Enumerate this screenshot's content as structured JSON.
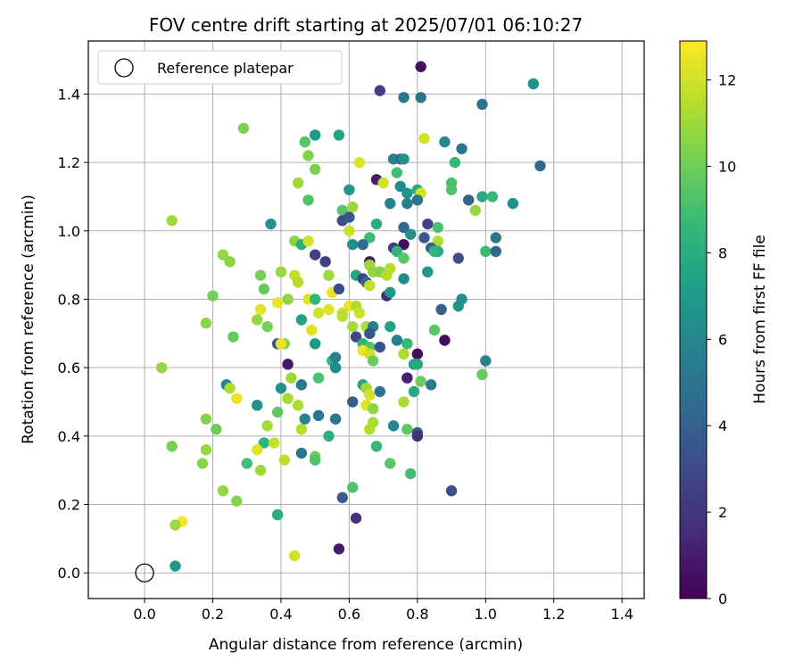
{
  "chart_data": {
    "type": "scatter",
    "title": "FOV centre drift starting at 2025/07/01 06:10:27",
    "xlabel": "Angular distance from reference (arcmin)",
    "ylabel": "Rotation from reference (arcmin)",
    "xlim": [
      -0.165,
      1.465
    ],
    "ylim": [
      -0.075,
      1.555
    ],
    "xticks": [
      0.0,
      0.2,
      0.4,
      0.6,
      0.8,
      1.0,
      1.2,
      1.4
    ],
    "yticks": [
      0.0,
      0.2,
      0.4,
      0.6,
      0.8,
      1.0,
      1.2,
      1.4
    ],
    "grid": true,
    "legend": {
      "placement": "upper-left",
      "entries": [
        "Reference platepar"
      ]
    },
    "reference_point": {
      "x": 0.0,
      "y": 0.0,
      "marker": "open-circle"
    },
    "colorbar": {
      "label": "Hours from first FF file",
      "colormap": "viridis",
      "range": [
        0,
        12.9
      ],
      "ticks": [
        0,
        2,
        4,
        6,
        8,
        10,
        12
      ]
    },
    "points": [
      [
        0.81,
        1.48,
        0.5
      ],
      [
        1.14,
        1.43,
        6.6
      ],
      [
        0.69,
        1.41,
        2.2
      ],
      [
        0.76,
        1.39,
        5.0
      ],
      [
        0.81,
        1.39,
        5.0
      ],
      [
        0.99,
        1.37,
        4.8
      ],
      [
        0.5,
        1.28,
        6.8
      ],
      [
        0.57,
        1.28,
        7.5
      ],
      [
        0.29,
        1.3,
        10.3
      ],
      [
        0.47,
        1.26,
        9.4
      ],
      [
        0.48,
        1.22,
        10.4
      ],
      [
        0.82,
        1.27,
        12.0
      ],
      [
        0.88,
        1.26,
        6.0
      ],
      [
        0.93,
        1.24,
        4.9
      ],
      [
        0.91,
        1.2,
        8.6
      ],
      [
        0.73,
        1.21,
        5.8
      ],
      [
        0.75,
        1.21,
        4.5
      ],
      [
        0.76,
        1.21,
        6.5
      ],
      [
        0.74,
        1.17,
        8.9
      ],
      [
        0.5,
        1.18,
        10.3
      ],
      [
        0.63,
        1.2,
        12.3
      ],
      [
        1.16,
        1.19,
        4.3
      ],
      [
        0.68,
        1.15,
        1.0
      ],
      [
        0.7,
        1.14,
        12.0
      ],
      [
        0.75,
        1.13,
        6.3
      ],
      [
        0.45,
        1.14,
        11.0
      ],
      [
        0.9,
        1.14,
        9.1
      ],
      [
        0.9,
        1.12,
        9.2
      ],
      [
        0.6,
        1.12,
        6.8
      ],
      [
        0.8,
        1.12,
        7.9
      ],
      [
        0.81,
        1.11,
        12.0
      ],
      [
        0.77,
        1.11,
        6.8
      ],
      [
        0.99,
        1.1,
        7.8
      ],
      [
        1.02,
        1.1,
        8.7
      ],
      [
        1.08,
        1.08,
        6.5
      ],
      [
        0.95,
        1.09,
        4.0
      ],
      [
        0.72,
        1.08,
        5.8
      ],
      [
        0.8,
        1.09,
        5.0
      ],
      [
        0.77,
        1.08,
        5.5
      ],
      [
        0.48,
        1.09,
        9.3
      ],
      [
        0.58,
        1.06,
        9.5
      ],
      [
        0.61,
        1.07,
        11.0
      ],
      [
        0.97,
        1.06,
        10.8
      ],
      [
        0.08,
        1.03,
        11.0
      ],
      [
        0.58,
        1.03,
        3.2
      ],
      [
        0.6,
        1.04,
        3.5
      ],
      [
        0.37,
        1.02,
        6.6
      ],
      [
        0.68,
        1.02,
        7.9
      ],
      [
        0.76,
        1.01,
        4.2
      ],
      [
        0.86,
        1.01,
        9.2
      ],
      [
        0.83,
        1.02,
        2.6
      ],
      [
        0.6,
        1.0,
        11.9
      ],
      [
        0.78,
        0.99,
        6.5
      ],
      [
        0.66,
        0.98,
        8.8
      ],
      [
        0.82,
        0.98,
        3.6
      ],
      [
        0.86,
        0.97,
        11.4
      ],
      [
        1.03,
        0.98,
        5.0
      ],
      [
        0.44,
        0.97,
        10.6
      ],
      [
        0.46,
        0.96,
        10.1
      ],
      [
        0.46,
        0.96,
        8.1
      ],
      [
        0.48,
        0.97,
        12.0
      ],
      [
        0.61,
        0.96,
        6.5
      ],
      [
        0.64,
        0.96,
        4.5
      ],
      [
        0.76,
        0.96,
        0.5
      ],
      [
        0.73,
        0.95,
        2.2
      ],
      [
        0.74,
        0.94,
        8.4
      ],
      [
        0.84,
        0.95,
        4.2
      ],
      [
        0.86,
        0.94,
        7.6
      ],
      [
        0.85,
        0.94,
        8.3
      ],
      [
        1.0,
        0.94,
        8.8
      ],
      [
        1.03,
        0.94,
        4.3
      ],
      [
        0.92,
        0.92,
        3.2
      ],
      [
        0.5,
        0.93,
        2.3
      ],
      [
        0.23,
        0.93,
        10.8
      ],
      [
        0.76,
        0.92,
        9.5
      ],
      [
        0.53,
        0.91,
        2.5
      ],
      [
        0.66,
        0.91,
        0.9
      ],
      [
        0.25,
        0.91,
        10.6
      ],
      [
        0.66,
        0.9,
        11.0
      ],
      [
        0.72,
        0.89,
        11.5
      ],
      [
        0.67,
        0.88,
        10.8
      ],
      [
        0.83,
        0.88,
        6.8
      ],
      [
        0.34,
        0.87,
        10.2
      ],
      [
        0.4,
        0.88,
        10.9
      ],
      [
        0.44,
        0.87,
        11.8
      ],
      [
        0.54,
        0.87,
        11.0
      ],
      [
        0.62,
        0.87,
        7.5
      ],
      [
        0.69,
        0.88,
        10.5
      ],
      [
        0.71,
        0.87,
        11.5
      ],
      [
        0.64,
        0.86,
        2.5
      ],
      [
        0.65,
        0.85,
        4.2
      ],
      [
        0.45,
        0.85,
        11.4
      ],
      [
        0.76,
        0.86,
        6.2
      ],
      [
        0.66,
        0.84,
        12.5
      ],
      [
        0.66,
        0.84,
        11.7
      ],
      [
        0.55,
        0.82,
        12.5
      ],
      [
        0.57,
        0.83,
        3.0
      ],
      [
        0.35,
        0.83,
        9.8
      ],
      [
        0.2,
        0.81,
        10.2
      ],
      [
        0.71,
        0.81,
        1.5
      ],
      [
        0.72,
        0.82,
        6.8
      ],
      [
        0.93,
        0.8,
        6.3
      ],
      [
        0.48,
        0.8,
        12.3
      ],
      [
        0.5,
        0.8,
        8.4
      ],
      [
        0.42,
        0.8,
        10.7
      ],
      [
        0.39,
        0.79,
        12.5
      ],
      [
        0.51,
        0.76,
        12.0
      ],
      [
        0.54,
        0.77,
        12.3
      ],
      [
        0.6,
        0.78,
        12.5
      ],
      [
        0.62,
        0.78,
        11.3
      ],
      [
        0.63,
        0.76,
        11.9
      ],
      [
        0.34,
        0.77,
        12.4
      ],
      [
        0.87,
        0.77,
        4.0
      ],
      [
        0.92,
        0.78,
        6.6
      ],
      [
        0.58,
        0.76,
        12.0
      ],
      [
        0.58,
        0.75,
        11.5
      ],
      [
        0.33,
        0.74,
        10.8
      ],
      [
        0.46,
        0.74,
        7.4
      ],
      [
        0.18,
        0.73,
        10.6
      ],
      [
        0.36,
        0.72,
        10.2
      ],
      [
        0.49,
        0.71,
        12.3
      ],
      [
        0.61,
        0.72,
        11.1
      ],
      [
        0.65,
        0.72,
        11.3
      ],
      [
        0.67,
        0.72,
        5.5
      ],
      [
        0.72,
        0.72,
        7.4
      ],
      [
        0.85,
        0.71,
        9.5
      ],
      [
        0.66,
        0.7,
        3.5
      ],
      [
        0.26,
        0.69,
        9.8
      ],
      [
        0.39,
        0.67,
        3.2
      ],
      [
        0.41,
        0.67,
        10.3
      ],
      [
        0.4,
        0.67,
        12.5
      ],
      [
        0.5,
        0.67,
        6.8
      ],
      [
        0.62,
        0.69,
        2.8
      ],
      [
        0.64,
        0.67,
        8.4
      ],
      [
        0.66,
        0.66,
        9.4
      ],
      [
        0.69,
        0.66,
        3.3
      ],
      [
        0.74,
        0.68,
        5.5
      ],
      [
        0.77,
        0.67,
        8.7
      ],
      [
        0.88,
        0.68,
        0.4
      ],
      [
        0.64,
        0.65,
        12.6
      ],
      [
        0.66,
        0.64,
        11.9
      ],
      [
        0.76,
        0.64,
        11.3
      ],
      [
        0.8,
        0.64,
        0.4
      ],
      [
        0.05,
        0.6,
        10.8
      ],
      [
        0.42,
        0.61,
        0.8
      ],
      [
        0.55,
        0.62,
        8.6
      ],
      [
        0.56,
        0.63,
        5.5
      ],
      [
        0.56,
        0.6,
        6.2
      ],
      [
        0.67,
        0.62,
        9.9
      ],
      [
        0.79,
        0.61,
        7.4
      ],
      [
        0.8,
        0.61,
        7.8
      ],
      [
        1.0,
        0.62,
        5.6
      ],
      [
        0.43,
        0.57,
        11.0
      ],
      [
        0.51,
        0.57,
        9.2
      ],
      [
        0.77,
        0.57,
        1.2
      ],
      [
        0.99,
        0.58,
        9.8
      ],
      [
        0.24,
        0.55,
        5.8
      ],
      [
        0.25,
        0.54,
        11.3
      ],
      [
        0.4,
        0.54,
        6.6
      ],
      [
        0.46,
        0.55,
        5.4
      ],
      [
        0.64,
        0.55,
        7.7
      ],
      [
        0.65,
        0.54,
        11.0
      ],
      [
        0.69,
        0.53,
        4.8
      ],
      [
        0.66,
        0.52,
        12.0
      ],
      [
        0.79,
        0.53,
        7.8
      ],
      [
        0.81,
        0.56,
        9.9
      ],
      [
        0.84,
        0.55,
        5.4
      ],
      [
        0.27,
        0.51,
        12.5
      ],
      [
        0.42,
        0.51,
        11.2
      ],
      [
        0.61,
        0.5,
        3.8
      ],
      [
        0.33,
        0.49,
        6.5
      ],
      [
        0.65,
        0.49,
        12.2
      ],
      [
        0.76,
        0.5,
        11.3
      ],
      [
        0.67,
        0.48,
        10.7
      ],
      [
        0.39,
        0.47,
        9.6
      ],
      [
        0.45,
        0.49,
        11.3
      ],
      [
        0.51,
        0.46,
        5.0
      ],
      [
        0.56,
        0.45,
        5.2
      ],
      [
        0.47,
        0.45,
        6.0
      ],
      [
        0.18,
        0.45,
        10.5
      ],
      [
        0.67,
        0.44,
        11.2
      ],
      [
        0.36,
        0.43,
        11.1
      ],
      [
        0.66,
        0.42,
        11.4
      ],
      [
        0.73,
        0.43,
        6.0
      ],
      [
        0.77,
        0.42,
        9.6
      ],
      [
        0.21,
        0.42,
        10.0
      ],
      [
        0.46,
        0.42,
        11.4
      ],
      [
        0.8,
        0.41,
        3.6
      ],
      [
        0.8,
        0.4,
        1.8
      ],
      [
        0.54,
        0.4,
        8.1
      ],
      [
        0.35,
        0.38,
        8.2
      ],
      [
        0.38,
        0.38,
        11.8
      ],
      [
        0.08,
        0.37,
        10.2
      ],
      [
        0.68,
        0.37,
        8.6
      ],
      [
        0.33,
        0.36,
        12.3
      ],
      [
        0.18,
        0.36,
        10.8
      ],
      [
        0.5,
        0.34,
        10.0
      ],
      [
        0.46,
        0.35,
        5.0
      ],
      [
        0.5,
        0.33,
        9.3
      ],
      [
        0.41,
        0.33,
        11.6
      ],
      [
        0.3,
        0.32,
        8.9
      ],
      [
        0.17,
        0.32,
        10.5
      ],
      [
        0.72,
        0.32,
        9.5
      ],
      [
        0.34,
        0.3,
        11.0
      ],
      [
        0.78,
        0.29,
        9.0
      ],
      [
        0.9,
        0.24,
        3.2
      ],
      [
        0.61,
        0.25,
        9.3
      ],
      [
        0.58,
        0.22,
        3.8
      ],
      [
        0.23,
        0.24,
        10.8
      ],
      [
        0.27,
        0.21,
        10.5
      ],
      [
        0.39,
        0.17,
        7.9
      ],
      [
        0.62,
        0.16,
        1.8
      ],
      [
        0.11,
        0.15,
        12.8
      ],
      [
        0.09,
        0.14,
        11.0
      ],
      [
        0.57,
        0.07,
        0.9
      ],
      [
        0.44,
        0.05,
        12.0
      ],
      [
        0.09,
        0.02,
        6.9
      ]
    ]
  }
}
